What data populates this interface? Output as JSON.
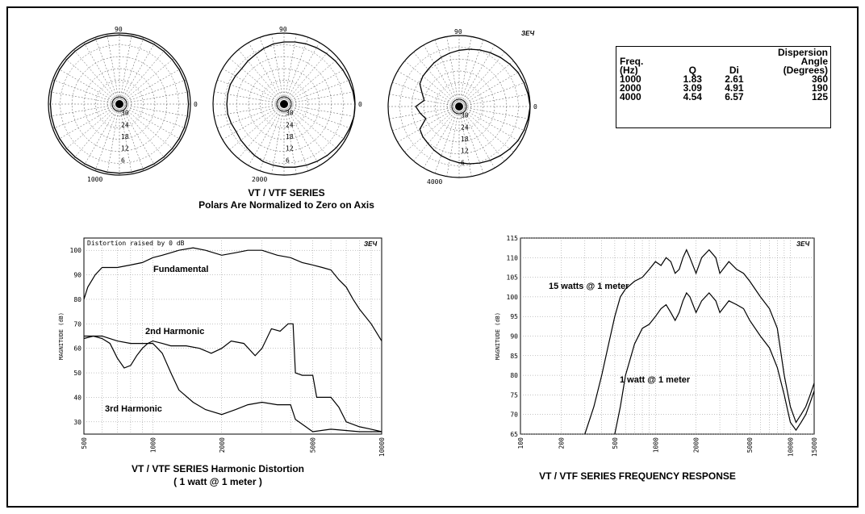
{
  "polar": {
    "title": "VT / VTF SERIES",
    "subtitle": "Polars Are Normalized to Zero on Axis",
    "logo": "ЗЕЧ",
    "ring_labels": [
      "30",
      "24",
      "18",
      "12",
      "6"
    ],
    "angle_top": "90",
    "angle_right": "0",
    "plots": [
      {
        "freq": "1000",
        "radius_db": [
          -1,
          -1,
          -1,
          -1,
          -1,
          -1,
          -1,
          -1,
          -1,
          -1,
          -1,
          -1,
          -1,
          -1,
          -1,
          -1,
          -1,
          -1,
          -1,
          -1,
          -1,
          -1,
          -1,
          -1,
          -1,
          -1,
          -1,
          -1,
          -1,
          -1,
          -1,
          -1,
          -1,
          -1,
          -1,
          -1
        ]
      },
      {
        "freq": "2000",
        "radius_db": [
          0,
          -0.5,
          -1,
          -1.5,
          -2,
          -2.5,
          -3,
          -3.5,
          -4,
          -4.5,
          -5,
          -6,
          -7,
          -7.5,
          -8,
          -7.5,
          -7,
          -7,
          -7,
          -7,
          -7.5,
          -8,
          -7.5,
          -7,
          -6,
          -5,
          -4.5,
          -4,
          -3.5,
          -3,
          -2.5,
          -2,
          -1.5,
          -1,
          -0.5,
          0
        ]
      },
      {
        "freq": "4000",
        "radius_db": [
          0,
          -0.5,
          -1,
          -1.5,
          -2.5,
          -3.5,
          -4.5,
          -5.5,
          -6.5,
          -7.5,
          -8.5,
          -9.5,
          -10.5,
          -11.5,
          -12,
          -13,
          -16,
          -18,
          -14,
          -16,
          -18,
          -13,
          -12,
          -11.5,
          -10.5,
          -9.5,
          -8.5,
          -7.5,
          -6.5,
          -5.5,
          -4.5,
          -3.5,
          -2.5,
          -1.5,
          -1,
          -0.5
        ]
      }
    ]
  },
  "dispersion_table": {
    "headers": [
      [
        "Freq.",
        "(Hz)"
      ],
      [
        "Q"
      ],
      [
        "Di"
      ],
      [
        "Dispersion",
        "Angle",
        "(Degrees)"
      ]
    ],
    "rows": [
      [
        "1000",
        "1.83",
        "2.61",
        "360"
      ],
      [
        "2000",
        "3.09",
        "4.91",
        "190"
      ],
      [
        "4000",
        "4.54",
        "6.57",
        "125"
      ]
    ]
  },
  "chart_data": [
    {
      "type": "line",
      "title": "VT / VTF SERIES Harmonic Distortion",
      "subtitle": "( 1 watt @ 1 meter )",
      "note": "Distortion raised by   0 dB",
      "logo": "ЗЕЧ",
      "ylabel": "MAGNITUDE (dB)",
      "xscale": "log",
      "xlim": [
        500,
        10000
      ],
      "ylim": [
        25,
        105
      ],
      "yticks": [
        30,
        40,
        50,
        60,
        70,
        80,
        90,
        100
      ],
      "xticks": [
        500,
        1000,
        2000,
        5000,
        10000
      ],
      "xtick_labels": [
        "500",
        "1000",
        "2000",
        "5000",
        "10000"
      ],
      "series": [
        {
          "name": "Fundamental",
          "x": [
            500,
            520,
            560,
            600,
            700,
            800,
            900,
            1000,
            1100,
            1200,
            1300,
            1500,
            1700,
            2000,
            2300,
            2600,
            3000,
            3500,
            4000,
            4500,
            5000,
            5500,
            6000,
            6500,
            7000,
            7500,
            8000,
            9000,
            10000
          ],
          "y": [
            80,
            85,
            90,
            93,
            93,
            94,
            95,
            97,
            98,
            99,
            100,
            101,
            100,
            98,
            99,
            100,
            100,
            98,
            97,
            95,
            94,
            93,
            92,
            88,
            85,
            80,
            76,
            70,
            63
          ]
        },
        {
          "name": "2nd Harmonic",
          "x": [
            500,
            550,
            600,
            650,
            700,
            750,
            800,
            850,
            900,
            950,
            1000,
            1100,
            1200,
            1400,
            1600,
            1800,
            2000,
            2200,
            2500,
            2800,
            3000,
            3300,
            3600,
            3900,
            4100,
            4200,
            4500,
            5000,
            5200,
            6000,
            6500,
            7000,
            8000,
            9000,
            10000
          ],
          "y": [
            64,
            65,
            64,
            62,
            56,
            52,
            53,
            57,
            60,
            62,
            63,
            62,
            61,
            61,
            60,
            58,
            60,
            63,
            62,
            57,
            60,
            68,
            67,
            70,
            70,
            50,
            49,
            49,
            40,
            40,
            36,
            30,
            28,
            27,
            26
          ]
        },
        {
          "name": "3rd Harmonic",
          "x": [
            500,
            600,
            700,
            800,
            900,
            1000,
            1050,
            1100,
            1200,
            1300,
            1500,
            1700,
            2000,
            2300,
            2600,
            3000,
            3500,
            4000,
            4200,
            5000,
            6000,
            8000,
            10000
          ],
          "y": [
            65,
            65,
            63,
            62,
            62,
            62,
            60,
            58,
            50,
            43,
            38,
            35,
            33,
            35,
            37,
            38,
            37,
            37,
            31,
            26,
            27,
            26,
            26
          ]
        }
      ]
    },
    {
      "type": "line",
      "title": "VT / VTF SERIES FREQUENCY RESPONSE",
      "logo": "ЗЕЧ",
      "ylabel": "MAGNITUDE (dB)",
      "xscale": "log",
      "xlim": [
        100,
        15000
      ],
      "ylim": [
        65,
        115
      ],
      "yticks": [
        65,
        70,
        75,
        80,
        85,
        90,
        95,
        100,
        105,
        110,
        115
      ],
      "xticks": [
        100,
        200,
        500,
        1000,
        2000,
        5000,
        10000,
        15000
      ],
      "xtick_labels": [
        "100",
        "200",
        "500",
        "1000",
        "2000",
        "5000",
        "10000",
        "15000"
      ],
      "series": [
        {
          "name": "15 watts @ 1 meter",
          "x": [
            300,
            350,
            400,
            450,
            500,
            550,
            600,
            700,
            800,
            900,
            1000,
            1100,
            1200,
            1300,
            1400,
            1500,
            1600,
            1700,
            1800,
            2000,
            2200,
            2500,
            2800,
            3000,
            3500,
            4000,
            4500,
            5000,
            6000,
            7000,
            8000,
            9000,
            10000,
            11000,
            12000,
            13000,
            14000,
            15000
          ],
          "y": [
            65,
            72,
            80,
            88,
            95,
            100,
            102,
            104,
            105,
            107,
            109,
            108,
            110,
            109,
            106,
            107,
            110,
            112,
            110,
            106,
            110,
            112,
            110,
            106,
            109,
            107,
            106,
            104,
            100,
            97,
            92,
            80,
            72,
            68,
            70,
            72,
            75,
            78
          ]
        },
        {
          "name": "1 watt @ 1 meter",
          "x": [
            500,
            550,
            600,
            700,
            800,
            900,
            1000,
            1100,
            1200,
            1300,
            1400,
            1500,
            1600,
            1700,
            1800,
            2000,
            2200,
            2500,
            2800,
            3000,
            3500,
            4000,
            4500,
            5000,
            6000,
            7000,
            8000,
            9000,
            10000,
            11000,
            12000,
            13000,
            14000,
            15000
          ],
          "y": [
            65,
            72,
            80,
            88,
            92,
            93,
            95,
            97,
            98,
            96,
            94,
            96,
            99,
            101,
            100,
            96,
            99,
            101,
            99,
            96,
            99,
            98,
            97,
            94,
            90,
            87,
            82,
            75,
            68,
            66,
            68,
            70,
            73,
            76
          ]
        }
      ]
    }
  ]
}
